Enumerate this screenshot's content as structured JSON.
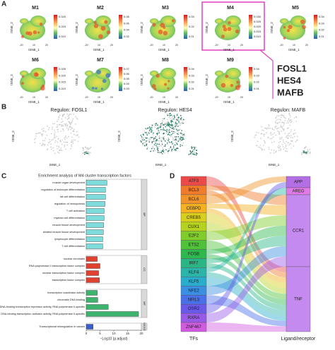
{
  "panels": {
    "a": {
      "label": "A",
      "xlabel": "tSNE_1",
      "ylabel": "tSNE_2",
      "xticks": [
        "-20",
        "10",
        "20"
      ],
      "plots": [
        {
          "title": "M1",
          "colorbar": [
            "0.020",
            "0.015",
            "0.010"
          ]
        },
        {
          "title": "M2",
          "colorbar": [
            "0.08",
            "0.06",
            "0.04",
            "0.02"
          ]
        },
        {
          "title": "M3",
          "colorbar": [
            "0.03",
            "0.02",
            "0.01"
          ]
        },
        {
          "title": "M4",
          "colorbar": [
            "0.030",
            "0.025",
            "0.020",
            "0.015",
            "0.010"
          ]
        },
        {
          "title": "M5",
          "colorbar": [
            "0.04",
            "0.03",
            "0.02",
            "0.01"
          ]
        },
        {
          "title": "M6",
          "colorbar": [
            "0.025",
            "0.020",
            "0.015",
            "0.010"
          ]
        },
        {
          "title": "M7",
          "colorbar": [
            "0.07",
            "0.06",
            "0.05",
            "0.04",
            "0.03"
          ]
        },
        {
          "title": "M8",
          "colorbar": [
            "0.04",
            "0.03",
            "0.02",
            "0.01"
          ]
        },
        {
          "title": "M9",
          "colorbar": [
            "0.04",
            "0.03",
            "0.02",
            "0.01"
          ]
        }
      ],
      "genes": [
        "FOSL1",
        "HES4",
        "MAFB"
      ]
    },
    "b": {
      "label": "B",
      "xlabel": "tSNE_1",
      "ylabel": "tSNE_2",
      "plots": [
        {
          "title": "Regulon: FOSL1"
        },
        {
          "title": "Regulon: HES4"
        },
        {
          "title": "Regulon: MAFB"
        }
      ]
    },
    "d": {
      "label": "D",
      "left_title": "TFs",
      "right_title": "Ligand/receptor",
      "left": [
        {
          "label": "ATF3",
          "color": "#ec4a4a"
        },
        {
          "label": "BCL3",
          "color": "#f07b2a"
        },
        {
          "label": "BCL6",
          "color": "#f0942a"
        },
        {
          "label": "CEBPD",
          "color": "#f5b21e"
        },
        {
          "label": "CREB5",
          "color": "#d8cf1c"
        },
        {
          "label": "CUX1",
          "color": "#b4d21e"
        },
        {
          "label": "E2F2",
          "color": "#7fcc2a"
        },
        {
          "label": "ETS2",
          "color": "#4fc23a"
        },
        {
          "label": "FOSB",
          "color": "#2eb84e"
        },
        {
          "label": "IRF7",
          "color": "#2bb585"
        },
        {
          "label": "KLF4",
          "color": "#2ab5a8"
        },
        {
          "label": "KLF5",
          "color": "#2aaccc"
        },
        {
          "label": "NFE2",
          "color": "#3a8fe0"
        },
        {
          "label": "NFIL3",
          "color": "#4a70e8"
        },
        {
          "label": "OSR2",
          "color": "#6a5ae8"
        },
        {
          "label": "RXRA",
          "color": "#9a5ae8"
        },
        {
          "label": "ZNF467",
          "color": "#d05ae0"
        }
      ],
      "right": [
        {
          "label": "APP",
          "color": "#b46ee6"
        },
        {
          "label": "AREG",
          "color": "#e07ae6"
        },
        {
          "label": "CCR1",
          "color": "#c58af0"
        },
        {
          "label": "TNF",
          "color": "#c58af0"
        }
      ]
    }
  },
  "chart_data": {
    "type": "barh",
    "label": "C",
    "title": "Enrichment analysis of M4 cluster transcription factors",
    "xlabel": "−Log10 (p.adjust)",
    "xlim": [
      0,
      20
    ],
    "xticks": [
      0,
      5,
      10,
      15,
      20
    ],
    "series": [
      {
        "name": "BP",
        "color": "#7fdcdc",
        "categories": [
          "muscle organ development",
          "regulation of leukocyte differentiation",
          "fat cell differentiation",
          "regulation of hemopoiesis",
          "T cell activation",
          "myeloid cell differentiation",
          "muscle tissue development",
          "striated muscle tissue development",
          "lymphocyte differentiation",
          "T cell differentiation"
        ],
        "values": [
          7.5,
          7,
          7,
          6.8,
          6.5,
          6.5,
          6.3,
          6.2,
          6,
          6
        ]
      },
      {
        "name": "CC",
        "color": "#e0402f",
        "categories": [
          "nuclear chromatin",
          "RNA polymerase II transcription factor complex",
          "nuclear transcription factor complex",
          "transcription factor complex"
        ],
        "values": [
          4,
          5,
          4.5,
          4.8
        ]
      },
      {
        "name": "MF",
        "color": "#3cb46e",
        "categories": [
          "transcription coactivator activity",
          "chromatin DNA binding",
          "DNA-binding transcription repressor activity, RNA polymerase II-specific",
          "DNA-binding transcription activator activity, RNA polymerase II-specific"
        ],
        "values": [
          4,
          4.2,
          8,
          19
        ]
      },
      {
        "name": "KEGG",
        "color": "#3a5fcd",
        "categories": [
          "Transcriptional misregulation in cancer"
        ],
        "values": [
          2.5
        ]
      }
    ]
  }
}
